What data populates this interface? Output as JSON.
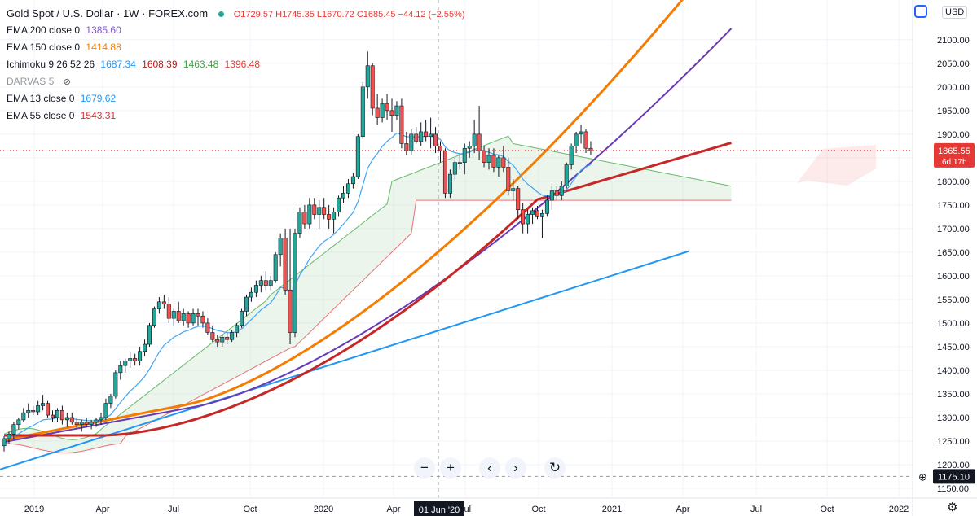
{
  "header": {
    "title": "Gold Spot / U.S. Dollar · 1W · FOREX.com",
    "ohlc": "O1729.57  H1745.35  L1670.72  C1685.45  −44.12 (−2.55%)",
    "currency": "USD"
  },
  "indicators": [
    {
      "name": "EMA 200 close 0",
      "value": "1385.60",
      "color": "#7e57c2"
    },
    {
      "name": "EMA 150 close 0",
      "value": "1414.88",
      "color": "#f57c00"
    },
    {
      "name": "Ichimoku 9 26 52 26",
      "values": [
        "1687.34",
        "1608.39",
        "1463.48",
        "1396.48"
      ],
      "colors": [
        "#2196f3",
        "#b71c1c",
        "#43a047",
        "#e53935"
      ]
    },
    {
      "name": "DARVAS 5",
      "hidden": true
    },
    {
      "name": "EMA 13 close 0",
      "value": "1679.62",
      "color": "#2196f3"
    },
    {
      "name": "EMA 55 close 0",
      "value": "1543.31",
      "color": "#d32f2f"
    }
  ],
  "price_label": {
    "value": "1865.55",
    "countdown": "6d 17h"
  },
  "crosshair": {
    "price": "1175.10",
    "date": "01 Jun '20"
  },
  "chart_data": {
    "type": "candlestick",
    "ylim": [
      1150,
      2150
    ],
    "y_ticks": [
      "1150.00",
      "1200.00",
      "1250.00",
      "1300.00",
      "1350.00",
      "1400.00",
      "1450.00",
      "1500.00",
      "1550.00",
      "1600.00",
      "1650.00",
      "1700.00",
      "1750.00",
      "1800.00",
      "1850.00",
      "1900.00",
      "1950.00",
      "2000.00",
      "2050.00",
      "2100.00"
    ],
    "x_ticks": [
      "2019",
      "Apr",
      "Jul",
      "Oct",
      "2020",
      "Apr",
      "Jul",
      "Oct",
      "2021",
      "Apr",
      "Jul",
      "Oct",
      "2022"
    ],
    "candles": [
      [
        1240,
        1260,
        1228,
        1255
      ],
      [
        1255,
        1270,
        1245,
        1265
      ],
      [
        1265,
        1290,
        1255,
        1285
      ],
      [
        1285,
        1300,
        1275,
        1295
      ],
      [
        1295,
        1320,
        1290,
        1310
      ],
      [
        1310,
        1330,
        1300,
        1315
      ],
      [
        1315,
        1325,
        1305,
        1312
      ],
      [
        1312,
        1335,
        1305,
        1325
      ],
      [
        1325,
        1348,
        1315,
        1330
      ],
      [
        1330,
        1335,
        1300,
        1305
      ],
      [
        1305,
        1315,
        1290,
        1300
      ],
      [
        1300,
        1320,
        1290,
        1315
      ],
      [
        1315,
        1325,
        1285,
        1295
      ],
      [
        1295,
        1310,
        1280,
        1300
      ],
      [
        1300,
        1310,
        1285,
        1290
      ],
      [
        1290,
        1300,
        1275,
        1285
      ],
      [
        1285,
        1295,
        1270,
        1290
      ],
      [
        1290,
        1300,
        1280,
        1285
      ],
      [
        1285,
        1295,
        1275,
        1290
      ],
      [
        1290,
        1300,
        1280,
        1295
      ],
      [
        1295,
        1310,
        1285,
        1300
      ],
      [
        1300,
        1340,
        1295,
        1330
      ],
      [
        1330,
        1350,
        1320,
        1345
      ],
      [
        1345,
        1400,
        1340,
        1395
      ],
      [
        1395,
        1420,
        1380,
        1410
      ],
      [
        1410,
        1425,
        1395,
        1420
      ],
      [
        1420,
        1440,
        1405,
        1425
      ],
      [
        1425,
        1435,
        1410,
        1420
      ],
      [
        1420,
        1450,
        1410,
        1440
      ],
      [
        1440,
        1465,
        1430,
        1455
      ],
      [
        1455,
        1500,
        1450,
        1495
      ],
      [
        1495,
        1535,
        1490,
        1530
      ],
      [
        1530,
        1555,
        1520,
        1545
      ],
      [
        1545,
        1560,
        1530,
        1540
      ],
      [
        1540,
        1555,
        1500,
        1510
      ],
      [
        1510,
        1530,
        1495,
        1525
      ],
      [
        1525,
        1545,
        1500,
        1505
      ],
      [
        1505,
        1530,
        1495,
        1520
      ],
      [
        1520,
        1525,
        1490,
        1500
      ],
      [
        1500,
        1530,
        1495,
        1520
      ],
      [
        1520,
        1530,
        1495,
        1515
      ],
      [
        1515,
        1525,
        1490,
        1500
      ],
      [
        1500,
        1510,
        1475,
        1480
      ],
      [
        1480,
        1495,
        1460,
        1465
      ],
      [
        1465,
        1475,
        1450,
        1460
      ],
      [
        1460,
        1475,
        1450,
        1470
      ],
      [
        1470,
        1480,
        1455,
        1465
      ],
      [
        1465,
        1485,
        1460,
        1480
      ],
      [
        1480,
        1500,
        1470,
        1495
      ],
      [
        1495,
        1530,
        1490,
        1525
      ],
      [
        1525,
        1560,
        1515,
        1555
      ],
      [
        1555,
        1575,
        1545,
        1565
      ],
      [
        1565,
        1590,
        1555,
        1580
      ],
      [
        1580,
        1600,
        1565,
        1590
      ],
      [
        1590,
        1610,
        1570,
        1580
      ],
      [
        1580,
        1600,
        1570,
        1590
      ],
      [
        1590,
        1650,
        1585,
        1645
      ],
      [
        1645,
        1690,
        1620,
        1680
      ],
      [
        1680,
        1700,
        1560,
        1570
      ],
      [
        1570,
        1700,
        1455,
        1480
      ],
      [
        1480,
        1700,
        1470,
        1690
      ],
      [
        1690,
        1745,
        1680,
        1735
      ],
      [
        1735,
        1750,
        1700,
        1710
      ],
      [
        1710,
        1765,
        1700,
        1750
      ],
      [
        1750,
        1765,
        1720,
        1730
      ],
      [
        1730,
        1760,
        1700,
        1745
      ],
      [
        1745,
        1765,
        1720,
        1730
      ],
      [
        1730,
        1750,
        1700,
        1720
      ],
      [
        1720,
        1745,
        1690,
        1735
      ],
      [
        1735,
        1770,
        1725,
        1765
      ],
      [
        1765,
        1790,
        1755,
        1775
      ],
      [
        1775,
        1805,
        1765,
        1795
      ],
      [
        1795,
        1818,
        1785,
        1810
      ],
      [
        1810,
        1900,
        1805,
        1895
      ],
      [
        1895,
        2010,
        1890,
        2000
      ],
      [
        2000,
        2075,
        1975,
        2045
      ],
      [
        2045,
        2050,
        1940,
        1955
      ],
      [
        1955,
        1985,
        1920,
        1935
      ],
      [
        1935,
        1975,
        1925,
        1965
      ],
      [
        1965,
        1985,
        1930,
        1950
      ],
      [
        1950,
        1975,
        1905,
        1940
      ],
      [
        1940,
        1970,
        1930,
        1960
      ],
      [
        1960,
        1975,
        1870,
        1880
      ],
      [
        1880,
        1905,
        1855,
        1865
      ],
      [
        1865,
        1910,
        1855,
        1900
      ],
      [
        1900,
        1915,
        1880,
        1885
      ],
      [
        1885,
        1925,
        1875,
        1905
      ],
      [
        1905,
        1930,
        1885,
        1895
      ],
      [
        1895,
        1935,
        1870,
        1900
      ],
      [
        1900,
        1915,
        1860,
        1875
      ],
      [
        1875,
        1885,
        1840,
        1865
      ],
      [
        1865,
        1870,
        1765,
        1775
      ],
      [
        1775,
        1825,
        1765,
        1815
      ],
      [
        1815,
        1850,
        1800,
        1840
      ],
      [
        1840,
        1860,
        1825,
        1840
      ],
      [
        1840,
        1880,
        1815,
        1870
      ],
      [
        1870,
        1885,
        1850,
        1875
      ],
      [
        1875,
        1930,
        1860,
        1900
      ],
      [
        1900,
        1960,
        1845,
        1865
      ],
      [
        1865,
        1875,
        1830,
        1840
      ],
      [
        1840,
        1870,
        1825,
        1855
      ],
      [
        1855,
        1870,
        1820,
        1830
      ],
      [
        1830,
        1855,
        1810,
        1850
      ],
      [
        1850,
        1875,
        1820,
        1830
      ],
      [
        1830,
        1850,
        1770,
        1780
      ],
      [
        1780,
        1805,
        1760,
        1785
      ],
      [
        1785,
        1790,
        1720,
        1740
      ],
      [
        1740,
        1755,
        1690,
        1710
      ],
      [
        1710,
        1740,
        1690,
        1730
      ],
      [
        1730,
        1745,
        1710,
        1738
      ],
      [
        1738,
        1748,
        1720,
        1725
      ],
      [
        1725,
        1740,
        1680,
        1732
      ],
      [
        1732,
        1770,
        1725,
        1760
      ],
      [
        1760,
        1790,
        1740,
        1780
      ],
      [
        1780,
        1790,
        1760,
        1770
      ],
      [
        1770,
        1800,
        1760,
        1790
      ],
      [
        1790,
        1840,
        1785,
        1835
      ],
      [
        1835,
        1880,
        1825,
        1875
      ],
      [
        1875,
        1905,
        1860,
        1900
      ],
      [
        1900,
        1920,
        1880,
        1905
      ],
      [
        1905,
        1910,
        1860,
        1870
      ],
      [
        1870,
        1885,
        1855,
        1865
      ]
    ]
  }
}
